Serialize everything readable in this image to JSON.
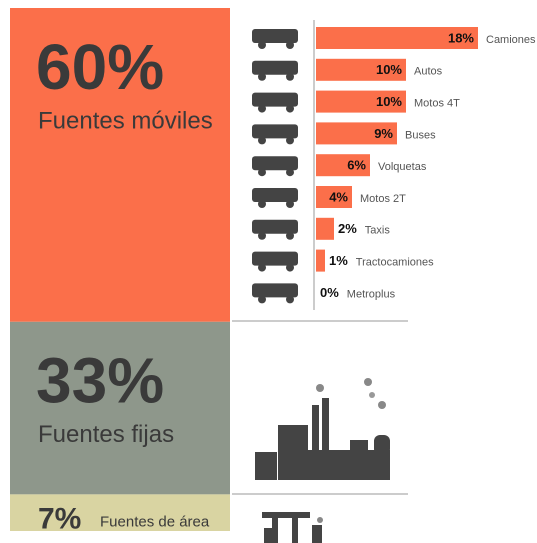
{
  "chart_data": [
    {
      "type": "stacked-column",
      "categories": [
        "Fuentes móviles",
        "Fuentes fijas",
        "Fuentes de área"
      ],
      "values": [
        60,
        33,
        7
      ],
      "value_labels": [
        "60%",
        "33%",
        "7%"
      ],
      "colors": [
        "#fb6f4a",
        "#8e978b",
        "#d9d4a2"
      ]
    },
    {
      "type": "bar",
      "categories": [
        "Camiones",
        "Autos",
        "Motos 4T",
        "Buses",
        "Volquetas",
        "Motos 2T",
        "Taxis",
        "Tractocamiones",
        "Metroplus"
      ],
      "values": [
        18,
        10,
        10,
        9,
        6,
        4,
        2,
        1,
        0
      ],
      "value_labels": [
        "18%",
        "10%",
        "10%",
        "9%",
        "6%",
        "4%",
        "2%",
        "1%",
        "0%"
      ],
      "color": "#fb6f4a"
    }
  ]
}
